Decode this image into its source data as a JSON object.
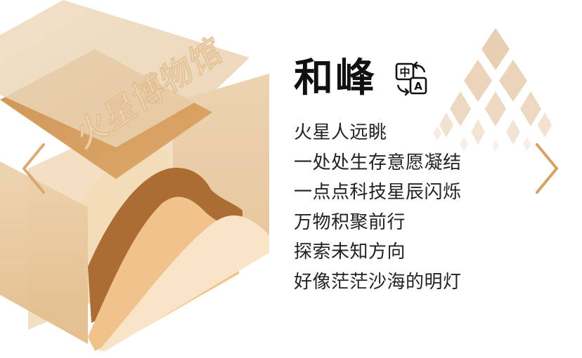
{
  "colors": {
    "accent": "#d9a066",
    "brown_dark": "#a86a34",
    "tan": "#e4c39a",
    "tan_light": "#f0d9b9",
    "cream": "#f7e6cf",
    "title_text": "#111111",
    "body_text": "#222222"
  },
  "logo": {
    "text": "火星博物馆"
  },
  "poem": {
    "title": "和峰",
    "lines": [
      "火星人远眺",
      "一处处生存意愿凝结",
      "一点点科技星辰闪烁",
      "万物积聚前行",
      "探索未知方向",
      "好像茫茫沙海的明灯"
    ]
  },
  "translate_icon": {
    "name": "translate-icon",
    "label_cn": "中",
    "label_en": "A"
  },
  "navigation": {
    "prev_icon": "chevron-left-icon",
    "next_icon": "chevron-right-icon"
  }
}
